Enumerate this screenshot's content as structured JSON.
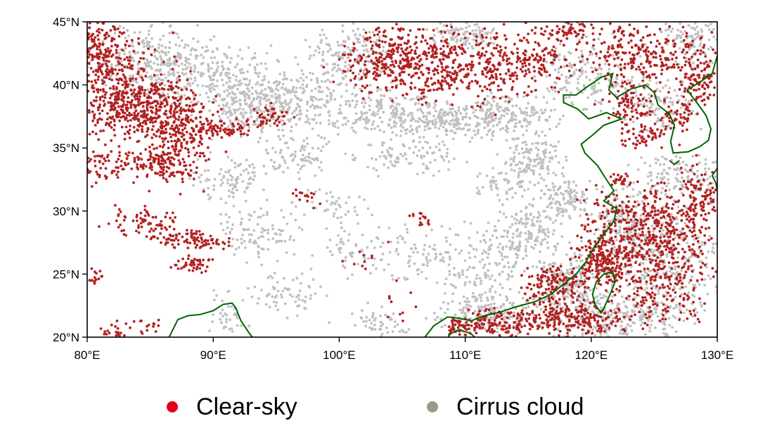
{
  "map": {
    "lon_range": [
      80,
      130
    ],
    "lat_range": [
      20,
      45
    ],
    "x_ticks": [
      {
        "value": 80,
        "label": "80°E"
      },
      {
        "value": 90,
        "label": "90°E"
      },
      {
        "value": 100,
        "label": "100°E"
      },
      {
        "value": 110,
        "label": "110°E"
      },
      {
        "value": 120,
        "label": "120°E"
      },
      {
        "value": 130,
        "label": "130°E"
      }
    ],
    "y_ticks": [
      {
        "value": 20,
        "label": "20°N"
      },
      {
        "value": 25,
        "label": "25°N"
      },
      {
        "value": 30,
        "label": "30°N"
      },
      {
        "value": 35,
        "label": "35°N"
      },
      {
        "value": 40,
        "label": "40°N"
      },
      {
        "value": 45,
        "label": "45°N"
      }
    ],
    "coastline_color": "#006400",
    "coastlines": [
      [
        [
          86.5,
          20.0
        ],
        [
          87.2,
          21.4
        ],
        [
          88.0,
          21.7
        ],
        [
          89.0,
          21.8
        ],
        [
          90.0,
          22.1
        ],
        [
          90.8,
          22.6
        ],
        [
          91.5,
          22.7
        ],
        [
          91.8,
          22.3
        ],
        [
          92.2,
          21.3
        ],
        [
          92.8,
          20.4
        ],
        [
          93.1,
          20.0
        ]
      ],
      [
        [
          106.8,
          20.0
        ],
        [
          107.5,
          20.9
        ],
        [
          108.6,
          21.6
        ],
        [
          109.5,
          21.5
        ],
        [
          110.5,
          21.3
        ],
        [
          111.5,
          21.7
        ],
        [
          112.8,
          22.0
        ],
        [
          114.0,
          22.4
        ],
        [
          115.5,
          22.8
        ],
        [
          116.8,
          23.4
        ],
        [
          117.8,
          24.2
        ],
        [
          118.8,
          25.0
        ],
        [
          119.6,
          26.0
        ],
        [
          120.2,
          27.1
        ],
        [
          121.0,
          28.2
        ],
        [
          121.8,
          29.2
        ],
        [
          122.0,
          30.2
        ],
        [
          121.0,
          30.8
        ],
        [
          121.8,
          31.6
        ],
        [
          121.2,
          32.5
        ],
        [
          120.5,
          33.6
        ],
        [
          119.5,
          34.6
        ],
        [
          119.2,
          35.3
        ],
        [
          120.2,
          36.1
        ],
        [
          121.0,
          36.8
        ],
        [
          122.4,
          37.3
        ],
        [
          121.2,
          37.8
        ],
        [
          119.8,
          37.3
        ],
        [
          118.9,
          38.1
        ],
        [
          117.8,
          38.6
        ],
        [
          117.8,
          39.2
        ],
        [
          118.8,
          39.2
        ],
        [
          119.6,
          39.8
        ],
        [
          120.8,
          40.6
        ],
        [
          121.7,
          40.9
        ],
        [
          121.4,
          39.6
        ],
        [
          122.0,
          39.0
        ],
        [
          123.2,
          39.7
        ],
        [
          124.3,
          40.0
        ],
        [
          125.0,
          39.4
        ],
        [
          125.3,
          38.4
        ],
        [
          126.2,
          37.7
        ],
        [
          126.6,
          36.8
        ],
        [
          126.3,
          35.5
        ],
        [
          126.5,
          34.6
        ],
        [
          127.7,
          34.7
        ],
        [
          128.6,
          35.1
        ],
        [
          129.3,
          35.6
        ],
        [
          129.5,
          36.5
        ],
        [
          129.1,
          37.6
        ],
        [
          128.3,
          38.7
        ],
        [
          127.6,
          39.6
        ],
        [
          128.6,
          40.2
        ],
        [
          129.6,
          40.9
        ],
        [
          130.0,
          42.3
        ]
      ],
      [
        [
          120.8,
          21.9
        ],
        [
          120.3,
          22.6
        ],
        [
          120.1,
          23.4
        ],
        [
          120.4,
          24.4
        ],
        [
          121.0,
          25.0
        ],
        [
          121.7,
          25.2
        ],
        [
          121.9,
          24.4
        ],
        [
          121.5,
          23.4
        ],
        [
          121.0,
          22.3
        ],
        [
          120.8,
          21.9
        ]
      ],
      [
        [
          108.6,
          19.2
        ],
        [
          108.7,
          20.2
        ],
        [
          109.5,
          20.6
        ],
        [
          110.4,
          20.3
        ],
        [
          111.0,
          19.8
        ]
      ],
      [
        [
          126.2,
          34.0
        ],
        [
          126.6,
          33.7
        ],
        [
          127.0,
          34.0
        ]
      ],
      [
        [
          130.0,
          33.4
        ],
        [
          129.6,
          32.8
        ],
        [
          129.9,
          32.2
        ],
        [
          130.0,
          31.6
        ]
      ]
    ],
    "points": {
      "clear_sky_color": "#b22222",
      "cirrus_color": "#c0c0c0",
      "clear_sky_regions": [
        [
          80.0,
          43.5,
          3.0,
          3.0,
          320
        ],
        [
          81.5,
          39.5,
          4.5,
          3.5,
          350
        ],
        [
          84.5,
          38.5,
          4.0,
          2.0,
          260
        ],
        [
          87.5,
          37.0,
          3.0,
          2.0,
          200
        ],
        [
          87.0,
          34.5,
          2.0,
          2.5,
          120
        ],
        [
          81.5,
          33.5,
          3.0,
          1.2,
          90
        ],
        [
          85.5,
          33.8,
          2.0,
          1.0,
          70
        ],
        [
          91.0,
          36.6,
          2.5,
          0.6,
          60
        ],
        [
          94.5,
          37.5,
          1.5,
          0.8,
          40
        ],
        [
          84.5,
          29.2,
          2.5,
          1.0,
          70
        ],
        [
          87.5,
          27.8,
          2.5,
          0.7,
          60
        ],
        [
          90.0,
          27.5,
          1.5,
          0.5,
          30
        ],
        [
          88.5,
          25.8,
          1.5,
          0.5,
          50
        ],
        [
          80.5,
          25.0,
          0.5,
          0.8,
          15
        ],
        [
          82.0,
          20.5,
          1.2,
          0.6,
          20
        ],
        [
          85.0,
          21.0,
          1.0,
          0.6,
          15
        ],
        [
          104.5,
          42.0,
          4.0,
          2.3,
          300
        ],
        [
          110.5,
          41.5,
          6.0,
          2.5,
          420
        ],
        [
          118.0,
          44.3,
          2.0,
          0.8,
          60
        ],
        [
          116.0,
          42.0,
          1.6,
          1.3,
          60
        ],
        [
          124.0,
          42.5,
          4.0,
          2.5,
          260
        ],
        [
          128.5,
          41.0,
          1.5,
          2.5,
          110
        ],
        [
          123.0,
          38.3,
          1.8,
          1.3,
          70
        ],
        [
          124.0,
          36.0,
          2.0,
          1.0,
          60
        ],
        [
          127.0,
          37.5,
          1.0,
          1.2,
          50
        ],
        [
          124.5,
          28.5,
          4.5,
          3.0,
          420
        ],
        [
          121.0,
          26.0,
          2.0,
          2.0,
          200
        ],
        [
          117.0,
          24.0,
          2.0,
          1.5,
          150
        ],
        [
          125.5,
          24.5,
          3.5,
          3.0,
          230
        ],
        [
          128.5,
          31.0,
          1.5,
          2.5,
          120
        ],
        [
          119.0,
          21.5,
          3.0,
          1.2,
          180
        ],
        [
          112.0,
          21.0,
          2.5,
          1.0,
          100
        ],
        [
          115.0,
          21.7,
          2.0,
          1.0,
          70
        ],
        [
          109.5,
          20.8,
          1.0,
          0.7,
          40
        ],
        [
          122.5,
          32.5,
          0.7,
          0.5,
          20
        ],
        [
          106.5,
          29.3,
          1.0,
          0.6,
          15
        ],
        [
          97.5,
          31.0,
          1.5,
          1.0,
          15
        ],
        [
          101.5,
          26.0,
          2.0,
          1.5,
          10
        ],
        [
          104.5,
          22.5,
          1.5,
          1.5,
          10
        ]
      ],
      "cirrus_regions": [
        [
          85.0,
          42.0,
          4.0,
          2.5,
          250
        ],
        [
          90.5,
          40.5,
          4.5,
          2.5,
          280
        ],
        [
          93.0,
          38.0,
          3.0,
          2.0,
          180
        ],
        [
          97.5,
          39.0,
          3.5,
          2.5,
          200
        ],
        [
          101.0,
          42.5,
          3.0,
          2.0,
          150
        ],
        [
          103.5,
          38.0,
          3.5,
          1.5,
          170
        ],
        [
          108.5,
          37.2,
          4.0,
          1.2,
          180
        ],
        [
          113.0,
          37.5,
          3.5,
          1.5,
          200
        ],
        [
          115.5,
          34.0,
          2.0,
          1.5,
          130
        ],
        [
          105.5,
          34.5,
          4.0,
          1.5,
          100
        ],
        [
          96.5,
          34.5,
          3.0,
          1.5,
          80
        ],
        [
          91.5,
          32.5,
          2.5,
          1.8,
          90
        ],
        [
          93.5,
          28.5,
          3.0,
          2.0,
          100
        ],
        [
          99.5,
          30.5,
          2.5,
          1.5,
          40
        ],
        [
          101.5,
          27.0,
          3.0,
          2.0,
          60
        ],
        [
          106.0,
          26.5,
          2.5,
          2.0,
          60
        ],
        [
          96.0,
          23.5,
          2.5,
          1.5,
          70
        ],
        [
          91.0,
          22.0,
          1.5,
          1.5,
          40
        ],
        [
          103.0,
          21.0,
          2.5,
          1.2,
          50
        ],
        [
          111.5,
          26.0,
          3.5,
          2.5,
          160
        ],
        [
          115.0,
          28.5,
          2.5,
          2.0,
          140
        ],
        [
          118.0,
          31.0,
          1.8,
          1.5,
          110
        ],
        [
          118.5,
          24.0,
          2.5,
          2.0,
          200
        ],
        [
          112.0,
          22.0,
          3.5,
          1.5,
          200
        ],
        [
          122.0,
          21.5,
          5.0,
          1.5,
          250
        ],
        [
          126.0,
          26.0,
          4.0,
          4.0,
          320
        ],
        [
          123.0,
          29.0,
          3.0,
          2.5,
          200
        ],
        [
          127.0,
          33.0,
          3.0,
          1.5,
          120
        ],
        [
          119.5,
          40.5,
          3.5,
          2.5,
          170
        ],
        [
          128.0,
          43.5,
          2.0,
          1.5,
          100
        ],
        [
          125.5,
          38.5,
          2.5,
          2.0,
          100
        ],
        [
          110.0,
          44.0,
          2.5,
          1.0,
          100
        ],
        [
          113.0,
          32.0,
          2.0,
          1.0,
          50
        ]
      ]
    }
  },
  "legend": {
    "items": [
      {
        "label": "Clear-sky",
        "color": "#e0001c"
      },
      {
        "label": "Cirrus cloud",
        "color": "#9a9a8c"
      }
    ]
  }
}
